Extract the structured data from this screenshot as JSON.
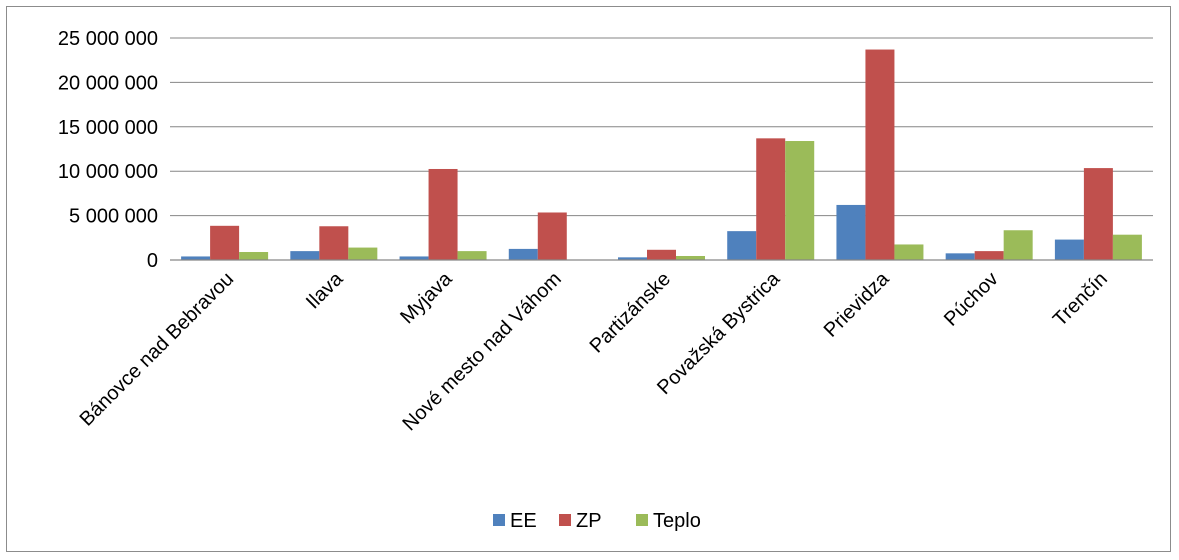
{
  "chart_data": {
    "type": "bar",
    "title": "",
    "xlabel": "",
    "ylabel": "",
    "ylim": [
      0,
      25000000
    ],
    "y_ticks": [
      {
        "value": 0,
        "label": "0"
      },
      {
        "value": 5000000,
        "label": "5 000 000"
      },
      {
        "value": 10000000,
        "label": "10 000 000"
      },
      {
        "value": 15000000,
        "label": "15 000 000"
      },
      {
        "value": 20000000,
        "label": "20 000 000"
      },
      {
        "value": 25000000,
        "label": "25 000 000"
      }
    ],
    "grid": true,
    "legend_position": "bottom",
    "categories": [
      "Bánovce nad Bebravou",
      "Ilava",
      "Myjava",
      "Nové mesto nad Váhom",
      "Partizánske",
      "Považská Bystrica",
      "Prievidza",
      "Púchov",
      "Trenčín"
    ],
    "series": [
      {
        "name": "EE",
        "color": "#4f81bd",
        "values": [
          400000,
          1000000,
          400000,
          1250000,
          300000,
          3250000,
          6200000,
          750000,
          2300000
        ]
      },
      {
        "name": "ZP",
        "color": "#c0504d",
        "values": [
          3850000,
          3800000,
          10250000,
          5350000,
          1150000,
          13700000,
          23700000,
          1000000,
          10350000
        ]
      },
      {
        "name": "Teplo",
        "color": "#9bbb59",
        "values": [
          900000,
          1400000,
          1000000,
          0,
          450000,
          13400000,
          1750000,
          3350000,
          2850000
        ]
      }
    ]
  }
}
